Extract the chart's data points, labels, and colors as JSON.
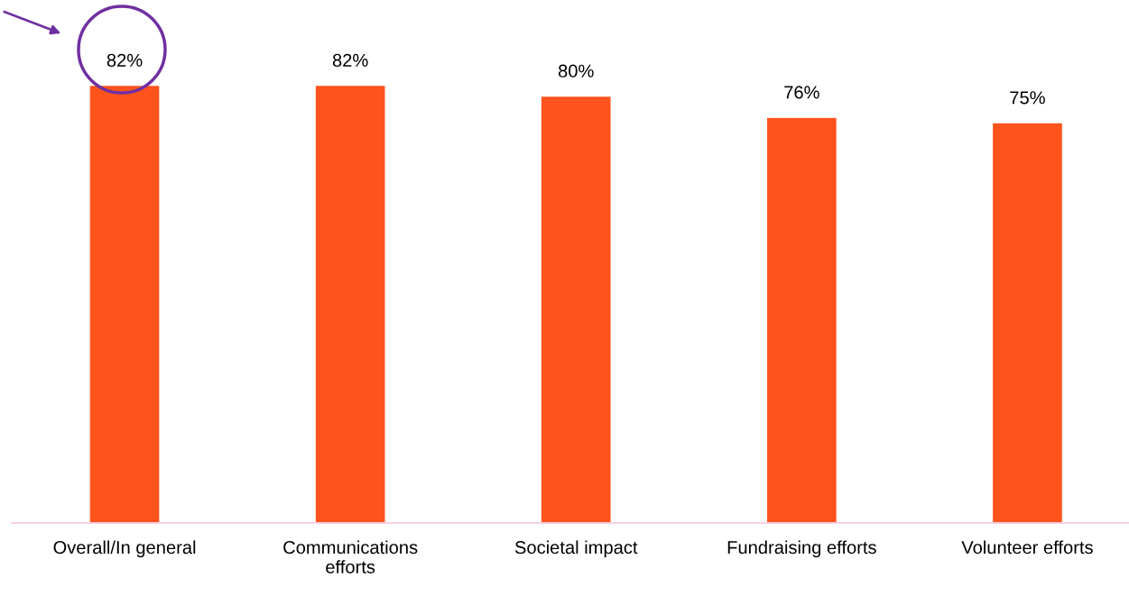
{
  "chart_data": {
    "type": "bar",
    "categories": [
      "Overall/In general",
      "Communications\nefforts",
      "Societal impact",
      "Fundraising efforts",
      "Volunteer efforts"
    ],
    "values": [
      82,
      82,
      80,
      76,
      75
    ],
    "value_labels": [
      "82%",
      "82%",
      "80%",
      "76%",
      "75%"
    ],
    "color": "#fe531c",
    "grid": false,
    "legend": false
  }
}
